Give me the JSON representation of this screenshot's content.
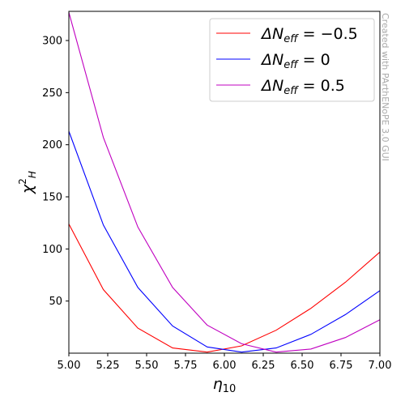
{
  "chart_data": {
    "type": "line",
    "x": [
      5.0,
      5.222,
      5.444,
      5.667,
      5.889,
      6.111,
      6.333,
      6.556,
      6.778,
      7.0
    ],
    "xlim": [
      5.0,
      7.0
    ],
    "ylim": [
      0,
      328
    ],
    "xticks": [
      "5.00",
      "5.25",
      "5.50",
      "5.75",
      "6.00",
      "6.25",
      "6.50",
      "6.75",
      "7.00"
    ],
    "xtick_values": [
      5.0,
      5.25,
      5.5,
      5.75,
      6.0,
      6.25,
      6.5,
      6.75,
      7.0
    ],
    "yticks": [
      "50",
      "100",
      "150",
      "200",
      "250",
      "300"
    ],
    "ytick_values": [
      50,
      100,
      150,
      200,
      250,
      300
    ],
    "xlabel_main": "η",
    "xlabel_sub": "10",
    "ylabel_main": "χ",
    "ylabel_sup": "2",
    "ylabel_sub": "H",
    "legend_position": "top-right",
    "grid": false,
    "series": [
      {
        "name": "ΔN_eff = −0.5",
        "label_main": "ΔN",
        "label_sub": "eff",
        "label_rest": " = −0.5",
        "color": "#ff0000",
        "values": [
          124,
          61,
          24,
          5,
          1,
          7,
          22,
          43,
          68,
          97
        ]
      },
      {
        "name": "ΔN_eff = 0",
        "label_main": "ΔN",
        "label_sub": "eff",
        "label_rest": " = 0",
        "color": "#0000ff",
        "values": [
          213,
          123,
          63,
          26,
          6,
          1,
          5,
          18,
          37,
          60
        ]
      },
      {
        "name": "ΔN_eff = 0.5",
        "label_main": "ΔN",
        "label_sub": "eff",
        "label_rest": " = 0.5",
        "color": "#c000c0",
        "values": [
          327,
          207,
          121,
          63,
          27,
          9,
          1,
          4,
          15,
          32
        ]
      }
    ]
  },
  "watermark": "Created with PArthENoPE 3.0 GUI"
}
